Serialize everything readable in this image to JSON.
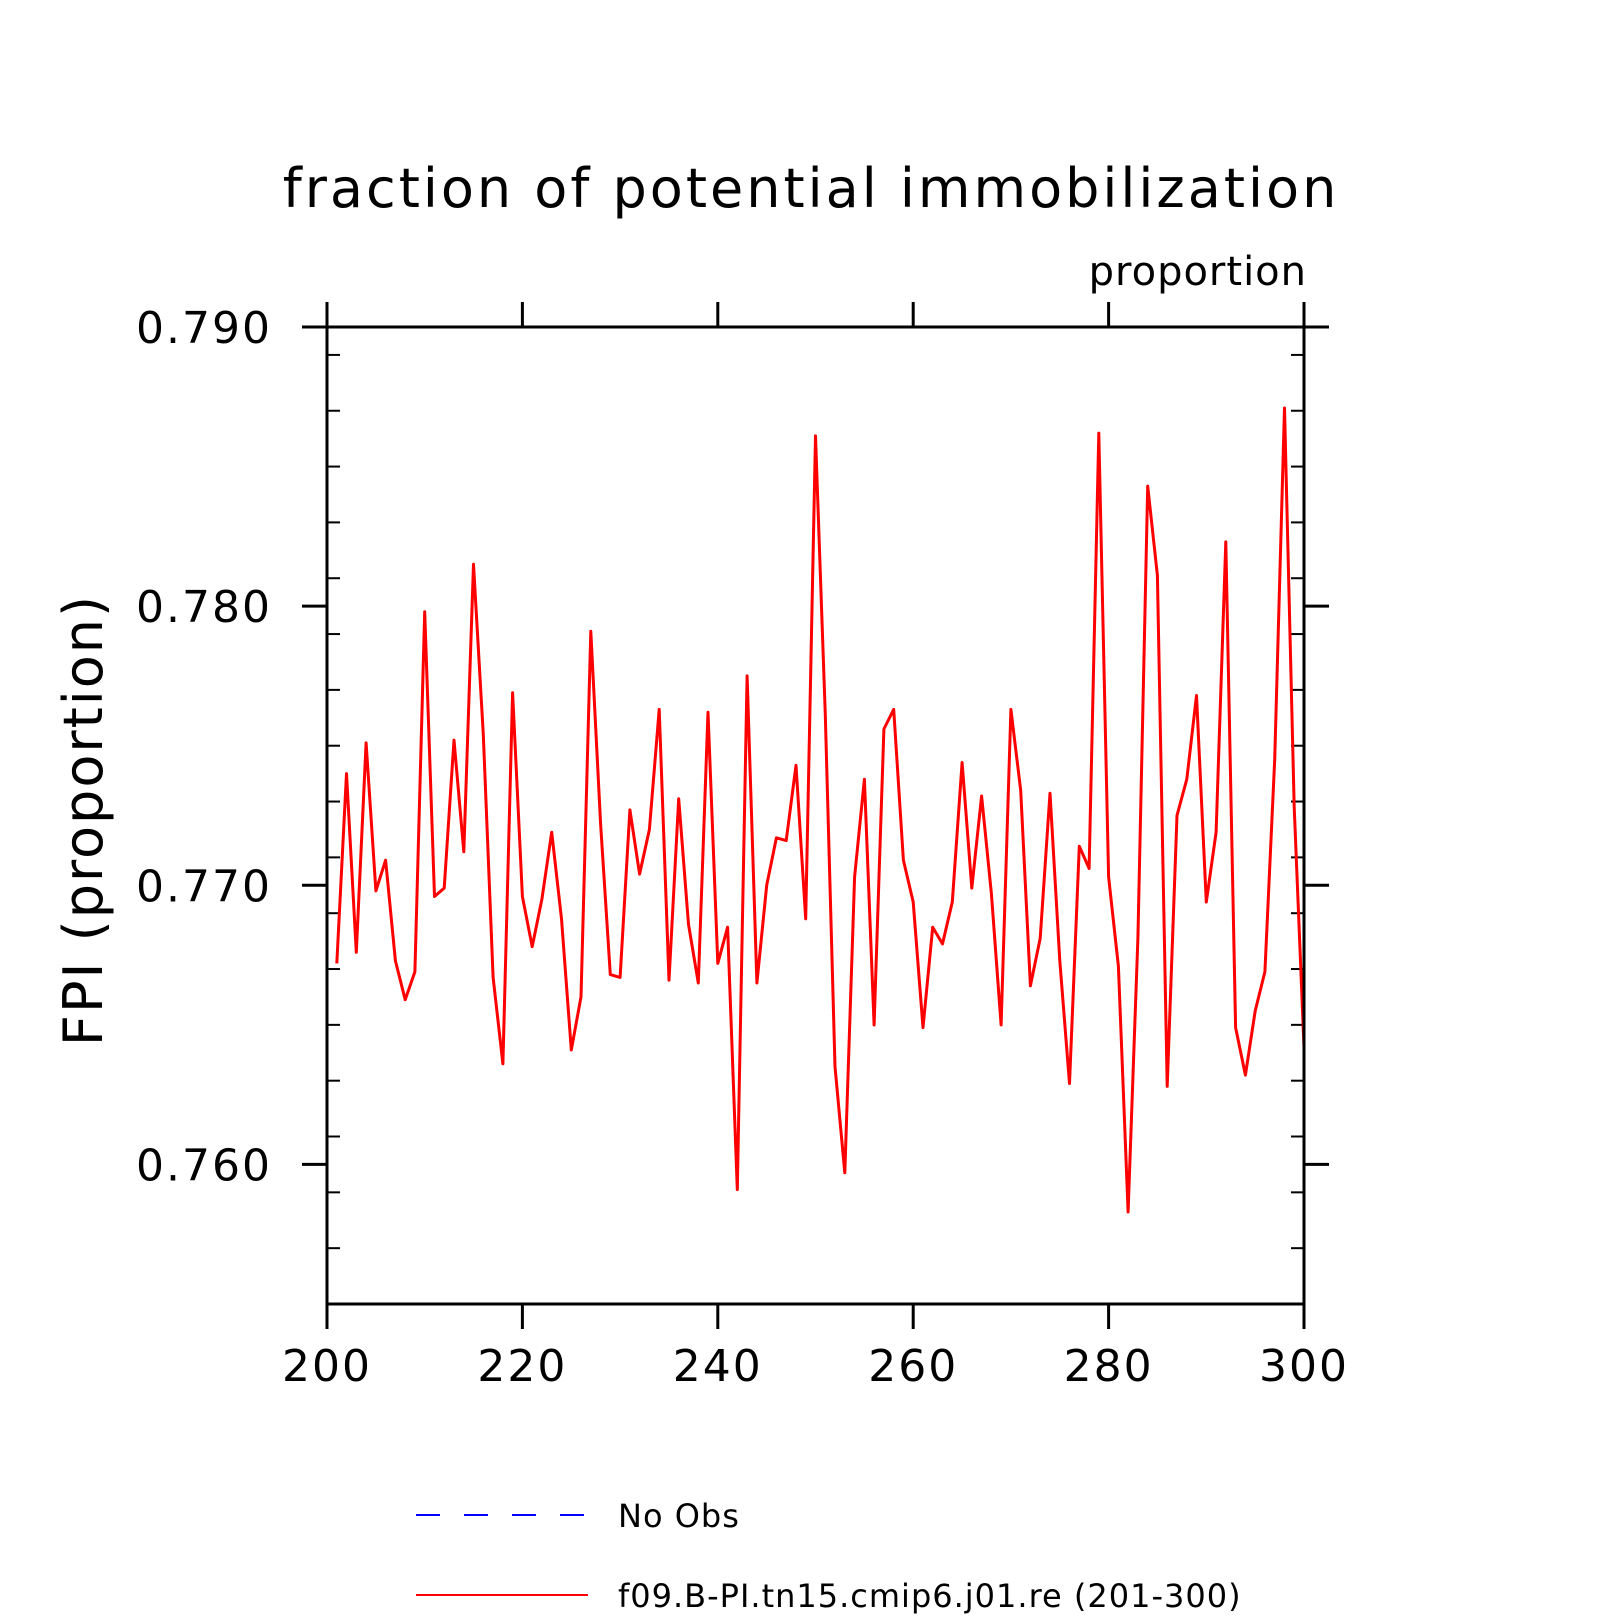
{
  "chart_data": {
    "type": "line",
    "title": "fraction of potential immobilization",
    "subtitle": "proportion",
    "xlabel": "",
    "ylabel": "FPI  (proportion)",
    "xlim": [
      200,
      300
    ],
    "ylim": [
      0.755,
      0.79
    ],
    "x_ticks": [
      200,
      220,
      240,
      260,
      280,
      300
    ],
    "x_tick_labels": [
      "200",
      "220",
      "240",
      "260",
      "280",
      "300"
    ],
    "y_ticks": [
      0.76,
      0.77,
      0.78,
      0.79
    ],
    "y_tick_labels": [
      "0.760",
      "0.770",
      "0.780",
      "0.790"
    ],
    "grid": false,
    "legend_position": "bottom",
    "series": [
      {
        "name": "f09.B-PI.tn15.cmip6.j01.re (201-300)",
        "color": "#ff0000",
        "style": "solid",
        "x": [
          201,
          202,
          203,
          204,
          205,
          206,
          207,
          208,
          209,
          210,
          211,
          212,
          213,
          214,
          215,
          216,
          217,
          218,
          219,
          220,
          221,
          222,
          223,
          224,
          225,
          226,
          227,
          228,
          229,
          230,
          231,
          232,
          233,
          234,
          235,
          236,
          237,
          238,
          239,
          240,
          241,
          242,
          243,
          244,
          245,
          246,
          247,
          248,
          249,
          250,
          251,
          252,
          253,
          254,
          255,
          256,
          257,
          258,
          259,
          260,
          261,
          262,
          263,
          264,
          265,
          266,
          267,
          268,
          269,
          270,
          271,
          272,
          273,
          274,
          275,
          276,
          277,
          278,
          279,
          280,
          281,
          282,
          283,
          284,
          285,
          286,
          287,
          288,
          289,
          290,
          291,
          292,
          293,
          294,
          295,
          296,
          297,
          298,
          299,
          300
        ],
        "values": [
          0.7672,
          0.774,
          0.7676,
          0.7751,
          0.7698,
          0.7709,
          0.7673,
          0.7659,
          0.7669,
          0.7798,
          0.7696,
          0.7699,
          0.7752,
          0.7712,
          0.7815,
          0.7754,
          0.7667,
          0.7636,
          0.7769,
          0.7696,
          0.7678,
          0.7695,
          0.7719,
          0.7688,
          0.7641,
          0.766,
          0.7791,
          0.7722,
          0.7668,
          0.7667,
          0.7727,
          0.7704,
          0.772,
          0.7763,
          0.7666,
          0.7731,
          0.7686,
          0.7665,
          0.7762,
          0.7672,
          0.7685,
          0.7591,
          0.7775,
          0.7665,
          0.77,
          0.7717,
          0.7716,
          0.7743,
          0.7688,
          0.7861,
          0.7761,
          0.7635,
          0.7597,
          0.7703,
          0.7738,
          0.765,
          0.7756,
          0.7763,
          0.7709,
          0.7694,
          0.7649,
          0.7685,
          0.7679,
          0.7694,
          0.7744,
          0.7699,
          0.7732,
          0.7697,
          0.765,
          0.7763,
          0.7734,
          0.7664,
          0.7681,
          0.7733,
          0.7673,
          0.7629,
          0.7714,
          0.7706,
          0.7862,
          0.7703,
          0.7671,
          0.7583,
          0.7681,
          0.7843,
          0.7811,
          0.7628,
          0.7725,
          0.7738,
          0.7768,
          0.7694,
          0.7719,
          0.7823,
          0.7649,
          0.7632,
          0.7655,
          0.7669,
          0.7745,
          0.7871,
          0.7728,
          0.7642
        ]
      }
    ],
    "legend": [
      {
        "label": "No Obs",
        "color": "#0000ff",
        "style": "dashed"
      },
      {
        "label": "f09.B-PI.tn15.cmip6.j01.re (201-300)",
        "color": "#ff0000",
        "style": "solid"
      }
    ]
  }
}
